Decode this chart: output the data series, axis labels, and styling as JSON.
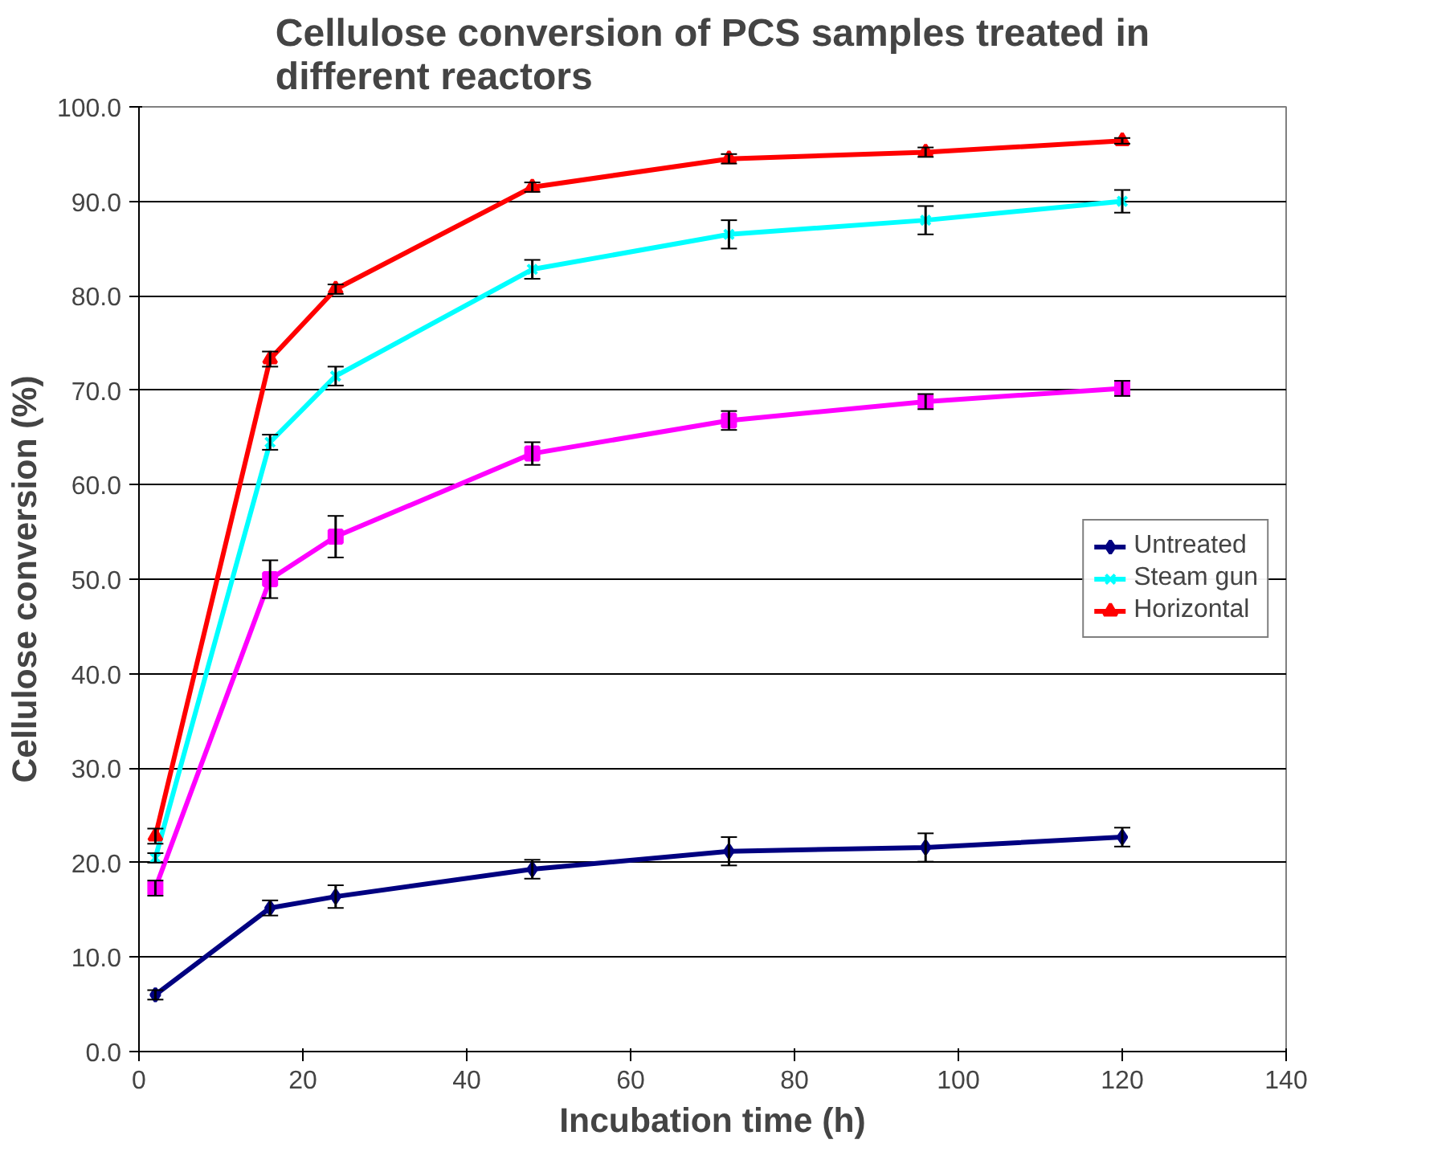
{
  "chart_data": {
    "type": "line",
    "title": "Cellulose conversion of PCS samples treated in different reactors",
    "xlabel": "Incubation time (h)",
    "ylabel": "Cellulose conversion (%)",
    "x": [
      2,
      16,
      24,
      48,
      72,
      96,
      120
    ],
    "series": [
      {
        "name": "Untreated",
        "color": "#000080",
        "marker": "diamond",
        "values": [
          6.0,
          15.2,
          16.4,
          19.3,
          21.2,
          21.6,
          22.7
        ],
        "errors": [
          0.5,
          0.8,
          1.2,
          1.0,
          1.5,
          1.5,
          1.0
        ]
      },
      {
        "color": "#ff00ff",
        "marker": "square",
        "values": [
          17.3,
          50.0,
          54.5,
          63.3,
          66.8,
          68.8,
          70.2
        ],
        "errors": [
          0.8,
          2.0,
          2.2,
          1.2,
          1.0,
          0.8,
          0.8
        ]
      },
      {
        "name": "Steam gun",
        "color": "#00ffff",
        "marker": "cross",
        "values": [
          20.5,
          64.5,
          71.5,
          82.8,
          86.5,
          88.0,
          90.0
        ],
        "errors": [
          0.5,
          0.8,
          1.0,
          1.0,
          1.5,
          1.5,
          1.2
        ]
      },
      {
        "name": "Horizontal",
        "color": "#ff0000",
        "marker": "triangle",
        "values": [
          22.8,
          73.3,
          80.7,
          91.5,
          94.5,
          95.2,
          96.4
        ],
        "errors": [
          0.8,
          0.8,
          0.5,
          0.5,
          0.5,
          0.5,
          0.3
        ]
      }
    ],
    "xlim": [
      0,
      140
    ],
    "xticks": [
      0,
      20,
      40,
      60,
      80,
      100,
      120,
      140
    ],
    "ylim": [
      0,
      100
    ],
    "yticks": [
      {
        "value": 0,
        "label": "0.0"
      },
      {
        "value": 10,
        "label": "10.0"
      },
      {
        "value": 20,
        "label": "20.0"
      },
      {
        "value": 30,
        "label": "30.0"
      },
      {
        "value": 40,
        "label": "40.0"
      },
      {
        "value": 50,
        "label": "50.0"
      },
      {
        "value": 60,
        "label": "60.0"
      },
      {
        "value": 70,
        "label": "70.0"
      },
      {
        "value": 80,
        "label": "80.0"
      },
      {
        "value": 90,
        "label": "90.0"
      },
      {
        "value": 100,
        "label": "100.0"
      }
    ],
    "grid": "y",
    "legend": "right",
    "line_style": "solid"
  }
}
